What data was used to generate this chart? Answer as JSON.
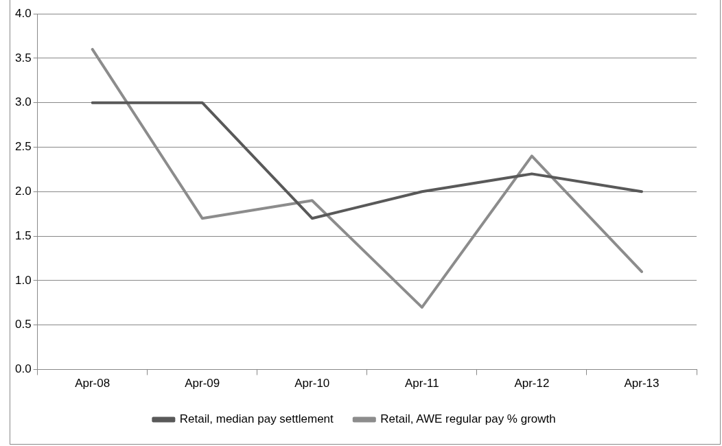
{
  "chart_data": {
    "type": "line",
    "categories": [
      "Apr-08",
      "Apr-09",
      "Apr-10",
      "Apr-11",
      "Apr-12",
      "Apr-13"
    ],
    "series": [
      {
        "name": "Retail, median pay settlement",
        "color": "#595959",
        "values": [
          3.0,
          3.0,
          1.7,
          2.0,
          2.2,
          2.0
        ]
      },
      {
        "name": "Retail, AWE regular pay % growth",
        "color": "#8c8c8c",
        "values": [
          3.6,
          1.7,
          1.9,
          0.7,
          2.4,
          1.1
        ]
      }
    ],
    "ylim": [
      0,
      4
    ],
    "yticks": [
      {
        "value": 0,
        "label": "0.0"
      },
      {
        "value": 0.5,
        "label": "0.5"
      },
      {
        "value": 1,
        "label": "1.0"
      },
      {
        "value": 1.5,
        "label": "1.5"
      },
      {
        "value": 2,
        "label": "2.0"
      },
      {
        "value": 2.5,
        "label": "2.5"
      },
      {
        "value": 3,
        "label": "3.0"
      },
      {
        "value": 3.5,
        "label": "3.5"
      },
      {
        "value": 4,
        "label": "4.0"
      }
    ],
    "grid": "y",
    "legend": "bottom",
    "marker": "none",
    "line_style": "solid"
  }
}
